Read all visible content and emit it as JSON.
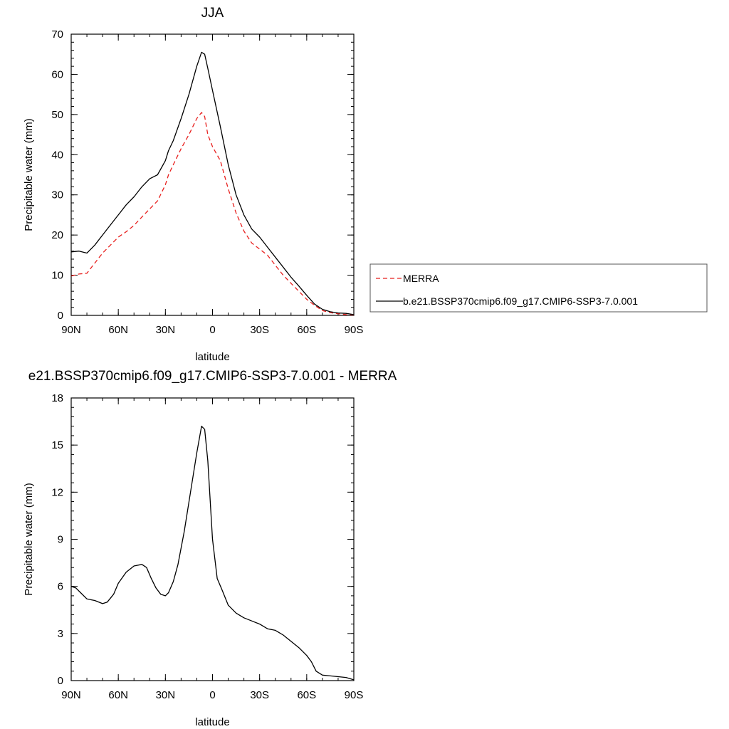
{
  "chart_data": [
    {
      "type": "line",
      "title": "JJA",
      "xlabel": "latitude",
      "ylabel": "Precipitable water (mm)",
      "xlim": [
        90,
        -90
      ],
      "ylim": [
        0,
        70
      ],
      "xticks": [
        90,
        60,
        30,
        0,
        -30,
        -60,
        -90
      ],
      "xtick_labels": [
        "90N",
        "60N",
        "30N",
        "0",
        "30S",
        "60S",
        "90S"
      ],
      "yticks": [
        0,
        10,
        20,
        30,
        40,
        50,
        60,
        70
      ],
      "ytick_labels": [
        "0",
        "10",
        "20",
        "30",
        "40",
        "50",
        "60",
        "70"
      ],
      "grid": false,
      "legend_position": "right",
      "series": [
        {
          "name": "MERRA",
          "color": "#e8201e",
          "dash": "dashed",
          "x": [
            90,
            85,
            80,
            75,
            70,
            65,
            60,
            55,
            50,
            45,
            40,
            35,
            30,
            28,
            25,
            20,
            15,
            10,
            7,
            5,
            3,
            0,
            -5,
            -10,
            -15,
            -20,
            -25,
            -30,
            -35,
            -40,
            -45,
            -50,
            -55,
            -60,
            -65,
            -70,
            -75,
            -80,
            -85,
            -90
          ],
          "y": [
            9.8,
            10.3,
            10.5,
            13.0,
            15.5,
            17.5,
            19.5,
            20.8,
            22.4,
            24.5,
            26.5,
            28.5,
            32.5,
            35.0,
            37.5,
            41.5,
            45.0,
            49.0,
            50.5,
            49.5,
            45.0,
            42.0,
            38.5,
            31.5,
            25.5,
            21.0,
            18.0,
            16.5,
            15.0,
            12.5,
            10.0,
            8.0,
            6.0,
            4.0,
            2.5,
            1.2,
            0.7,
            0.4,
            0.2,
            0.1
          ]
        },
        {
          "name": "b.e21.BSSP370cmip6.f09_g17.CMIP6-SSP3-7.0.001",
          "color": "#000000",
          "dash": "solid",
          "x": [
            90,
            85,
            80,
            75,
            70,
            65,
            60,
            55,
            50,
            45,
            40,
            35,
            30,
            28,
            25,
            20,
            15,
            10,
            7,
            5,
            3,
            0,
            -5,
            -10,
            -15,
            -20,
            -25,
            -30,
            -35,
            -40,
            -45,
            -50,
            -55,
            -60,
            -65,
            -70,
            -75,
            -80,
            -85,
            -90
          ],
          "y": [
            15.8,
            16.0,
            15.5,
            17.5,
            20.0,
            22.5,
            25.0,
            27.5,
            29.5,
            32.0,
            34.0,
            35.0,
            38.5,
            41.0,
            43.5,
            49.0,
            55.0,
            62.0,
            65.5,
            65.0,
            61.5,
            56.0,
            47.0,
            37.5,
            30.0,
            25.0,
            21.5,
            19.5,
            17.0,
            14.5,
            12.0,
            9.5,
            7.3,
            5.0,
            2.8,
            1.5,
            0.9,
            0.6,
            0.5,
            0.2
          ]
        }
      ]
    },
    {
      "type": "line",
      "title": "e21.BSSP370cmip6.f09_g17.CMIP6-SSP3-7.0.001 - MERRA",
      "xlabel": "latitude",
      "ylabel": "Precipitable water (mm)",
      "xlim": [
        90,
        -90
      ],
      "ylim": [
        0,
        18
      ],
      "xticks": [
        90,
        60,
        30,
        0,
        -30,
        -60,
        -90
      ],
      "xtick_labels": [
        "90N",
        "60N",
        "30N",
        "0",
        "30S",
        "60S",
        "90S"
      ],
      "yticks": [
        0,
        3,
        6,
        9,
        12,
        15,
        18
      ],
      "ytick_labels": [
        "0",
        "3",
        "6",
        "9",
        "12",
        "15",
        "18"
      ],
      "grid": false,
      "series": [
        {
          "color": "#000000",
          "dash": "solid",
          "x": [
            90,
            87,
            84,
            80,
            75,
            70,
            67,
            63,
            60,
            55,
            50,
            45,
            42,
            39,
            36,
            33,
            30,
            28,
            25,
            22,
            18,
            14,
            10,
            7,
            5,
            3,
            0,
            -3,
            -6,
            -10,
            -15,
            -20,
            -25,
            -30,
            -35,
            -40,
            -45,
            -50,
            -55,
            -60,
            -63,
            -66,
            -70,
            -75,
            -80,
            -85,
            -90
          ],
          "y": [
            6.0,
            5.9,
            5.6,
            5.2,
            5.1,
            4.9,
            5.0,
            5.5,
            6.2,
            6.9,
            7.3,
            7.4,
            7.2,
            6.5,
            5.9,
            5.5,
            5.4,
            5.6,
            6.3,
            7.4,
            9.5,
            12.0,
            14.5,
            16.2,
            16.0,
            14.0,
            9.0,
            6.5,
            5.8,
            4.8,
            4.3,
            4.0,
            3.8,
            3.6,
            3.3,
            3.2,
            2.9,
            2.5,
            2.1,
            1.6,
            1.2,
            0.6,
            0.35,
            0.3,
            0.25,
            0.2,
            0.05
          ]
        }
      ]
    }
  ]
}
